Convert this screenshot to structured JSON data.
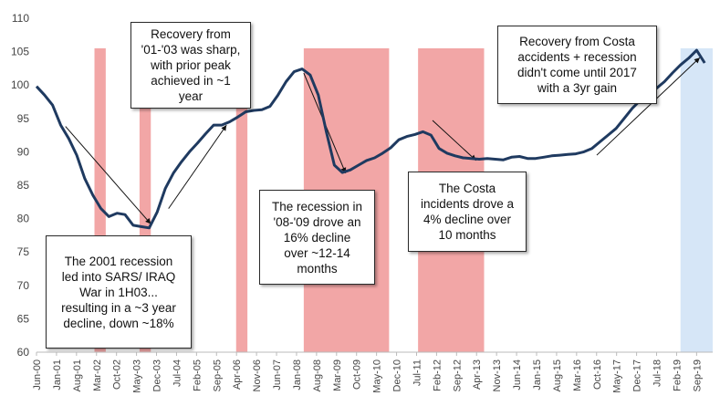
{
  "chart_data": {
    "type": "line",
    "title": "",
    "xlabel": "",
    "ylabel": "",
    "ylim": [
      60,
      110
    ],
    "y_ticks": [
      60,
      65,
      70,
      75,
      80,
      85,
      90,
      95,
      100,
      105,
      110
    ],
    "x_tick_labels": [
      "Jun-00",
      "Jan-01",
      "Aug-01",
      "Mar-02",
      "Oct-02",
      "May-03",
      "Dec-03",
      "Jul-04",
      "Feb-05",
      "Sep-05",
      "Apr-06",
      "Nov-06",
      "Jun-07",
      "Jan-08",
      "Aug-08",
      "Mar-09",
      "Oct-09",
      "May-10",
      "Dec-10",
      "Jul-11",
      "Feb-12",
      "Sep-12",
      "Apr-13",
      "Nov-13",
      "Jun-14",
      "Jan-15",
      "Aug-15",
      "Mar-16",
      "Oct-16",
      "May-17",
      "Dec-17",
      "Jul-18",
      "Feb-19",
      "Sep-19"
    ],
    "grid": false,
    "line_color": "#1f3a60",
    "series": [
      {
        "points": [
          [
            0,
            99.8
          ],
          [
            0.5,
            98.5
          ],
          [
            1,
            97
          ],
          [
            1.5,
            94
          ],
          [
            2,
            92
          ],
          [
            2.5,
            89.5
          ],
          [
            3,
            86
          ],
          [
            3.5,
            83.5
          ],
          [
            4,
            81.5
          ],
          [
            4.5,
            80.3
          ],
          [
            5,
            80.8
          ],
          [
            5.5,
            80.6
          ],
          [
            6,
            79
          ],
          [
            6.5,
            78.8
          ],
          [
            7,
            78.6
          ],
          [
            7.5,
            81
          ],
          [
            8,
            84.5
          ],
          [
            8.5,
            86.8
          ],
          [
            9,
            88.5
          ],
          [
            9.5,
            90
          ],
          [
            10,
            91.3
          ],
          [
            10.5,
            92.7
          ],
          [
            11,
            94
          ],
          [
            11.5,
            94
          ],
          [
            12,
            94.5
          ],
          [
            12.5,
            95.2
          ],
          [
            13,
            96
          ],
          [
            13.5,
            96.2
          ],
          [
            14,
            96.3
          ],
          [
            14.5,
            96.8
          ],
          [
            15,
            98.5
          ],
          [
            15.5,
            100.5
          ],
          [
            16,
            102
          ],
          [
            16.5,
            102.4
          ],
          [
            17,
            101.5
          ],
          [
            17.5,
            98.5
          ],
          [
            18,
            93
          ],
          [
            18.5,
            88
          ],
          [
            19,
            86.9
          ],
          [
            19.5,
            87.3
          ],
          [
            20,
            88
          ],
          [
            20.5,
            88.7
          ],
          [
            21,
            89.1
          ],
          [
            21.5,
            89.8
          ],
          [
            22,
            90.6
          ],
          [
            22.5,
            91.8
          ],
          [
            23,
            92.3
          ],
          [
            23.5,
            92.6
          ],
          [
            24,
            93
          ],
          [
            24.5,
            92.5
          ],
          [
            25,
            90.5
          ],
          [
            25.5,
            89.8
          ],
          [
            26,
            89.4
          ],
          [
            26.5,
            89.1
          ],
          [
            27,
            89
          ],
          [
            27.5,
            88.9
          ],
          [
            28,
            89
          ],
          [
            28.5,
            88.9
          ],
          [
            29,
            88.8
          ],
          [
            29.5,
            89.2
          ],
          [
            30,
            89.3
          ],
          [
            30.5,
            89
          ],
          [
            31,
            89
          ],
          [
            31.5,
            89.2
          ],
          [
            32,
            89.4
          ],
          [
            32.5,
            89.5
          ],
          [
            33,
            89.6
          ],
          [
            33.5,
            89.7
          ],
          [
            34,
            90
          ],
          [
            34.5,
            90.5
          ],
          [
            35,
            91.5
          ],
          [
            35.5,
            92.5
          ],
          [
            36,
            93.5
          ],
          [
            36.5,
            95
          ],
          [
            37,
            96.5
          ],
          [
            37.5,
            97.7
          ],
          [
            38,
            98.7
          ],
          [
            38.5,
            99.5
          ],
          [
            39,
            100.5
          ],
          [
            39.5,
            101.8
          ],
          [
            40,
            103
          ],
          [
            40.5,
            104
          ],
          [
            41,
            105.2
          ],
          [
            41.5,
            103.3
          ]
        ]
      }
    ],
    "shaded_periods": [
      {
        "type": "recession",
        "color": "#f2a6a6",
        "x_start": 3.6,
        "x_end": 4.3
      },
      {
        "type": "recession",
        "color": "#f2a6a6",
        "x_start": 6.4,
        "x_end": 7.1
      },
      {
        "type": "recession",
        "color": "#f2a6a6",
        "x_start": 12.4,
        "x_end": 13.1
      },
      {
        "type": "recession",
        "color": "#f2a6a6",
        "x_start": 16.6,
        "x_end": 21.9
      },
      {
        "type": "recession",
        "color": "#f2a6a6",
        "x_start": 23.7,
        "x_end": 27.8
      },
      {
        "type": "current",
        "color": "#d6e6f7",
        "x_start": 40.0,
        "x_end": 42.0
      }
    ],
    "x_max": 42,
    "arrows": [
      {
        "from": [
          1.8,
          93.8
        ],
        "to": [
          7.1,
          79.2
        ]
      },
      {
        "from": [
          8.2,
          81.5
        ],
        "to": [
          11.8,
          94
        ]
      },
      {
        "from": [
          16.6,
          101.8
        ],
        "to": [
          19.2,
          86.8
        ]
      },
      {
        "from": [
          24.6,
          94.7
        ],
        "to": [
          27.3,
          88.7
        ]
      },
      {
        "from": [
          34.8,
          89.5
        ],
        "to": [
          41.2,
          104.1
        ]
      }
    ],
    "annotations": [
      {
        "text": "Recovery from\n'01-'03 was sharp,\nwith prior peak\nachieved in ~1\nyear"
      },
      {
        "text": "The 2001 recession\nled into SARS/ IRAQ\nWar in 1H03...\nresulting in a ~3 year\ndecline, down ~18%"
      },
      {
        "text": "The recession in\n'08-'09 drove an\n16% decline\nover ~12-14\nmonths"
      },
      {
        "text": "The Costa\nincidents drove a\n4% decline over\n10 months"
      },
      {
        "text": "Recovery from Costa\naccidents +  recession\ndidn't come until 2017\nwith a 3yr gain"
      }
    ]
  }
}
